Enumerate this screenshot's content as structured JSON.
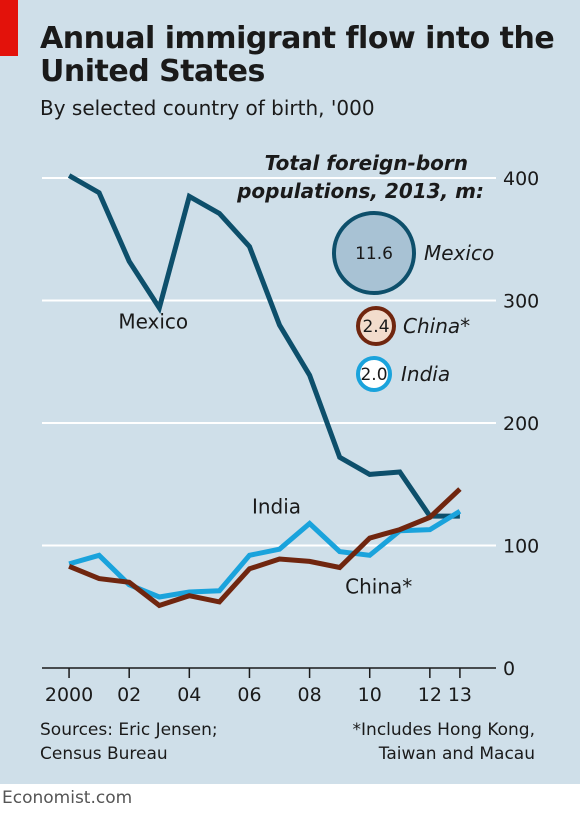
{
  "header": {
    "title": "Annual immigrant flow into the United States",
    "subtitle": "By selected country of birth, '000"
  },
  "footer": {
    "sources_line1": "Sources: Eric Jensen;",
    "sources_line2": "Census Bureau",
    "note_line1": "*Includes Hong Kong,",
    "note_line2": "Taiwan and Macau",
    "brand": "Economist.com"
  },
  "chart_data": {
    "type": "line",
    "x": [
      2000,
      2001,
      2002,
      2003,
      2004,
      2005,
      2006,
      2007,
      2008,
      2009,
      2010,
      2011,
      2012,
      2013
    ],
    "xlim": [
      1999.1,
      2014.2
    ],
    "ylim": [
      0,
      400
    ],
    "grid": true,
    "y_ticks": [
      {
        "value": 0,
        "label": "0"
      },
      {
        "value": 100,
        "label": "100"
      },
      {
        "value": 200,
        "label": "200"
      },
      {
        "value": 300,
        "label": "300"
      },
      {
        "value": 400,
        "label": "400"
      }
    ],
    "x_ticks": [
      {
        "value": 2000,
        "label": "2000"
      },
      {
        "value": 2002,
        "label": "02"
      },
      {
        "value": 2004,
        "label": "04"
      },
      {
        "value": 2006,
        "label": "06"
      },
      {
        "value": 2008,
        "label": "08"
      },
      {
        "value": 2010,
        "label": "10"
      },
      {
        "value": 2012,
        "label": "12"
      },
      {
        "value": 2013,
        "label": "13"
      }
    ],
    "series": [
      {
        "name": "Mexico",
        "color": "#0d4f6b",
        "values": [
          402,
          388,
          332,
          294,
          385,
          371,
          344,
          280,
          239,
          172,
          158,
          160,
          124,
          124
        ]
      },
      {
        "name": "India",
        "color": "#1aa3dc",
        "values": [
          85,
          92,
          68,
          58,
          62,
          63,
          92,
          97,
          118,
          95,
          92,
          112,
          113,
          128
        ]
      },
      {
        "name": "China*",
        "color": "#70260f",
        "values": [
          83,
          73,
          70,
          51,
          59,
          54,
          81,
          89,
          87,
          82,
          106,
          113,
          123,
          146
        ]
      }
    ],
    "series_labels": [
      {
        "text": "Mexico",
        "x": 2002.8,
        "y": 277
      },
      {
        "text": "India",
        "x": 2006.9,
        "y": 126
      },
      {
        "text": "China*",
        "x": 2010.3,
        "y": 61
      }
    ],
    "bubbles": {
      "heading_line1": "Total foreign-born",
      "heading_line2": "populations, 2013, m:",
      "items": [
        {
          "country": "Mexico",
          "value": "11.6",
          "fill": "#a8c2d4",
          "stroke": "#0d4f6b"
        },
        {
          "country": "China*",
          "value": "2.4",
          "fill": "#f2dccc",
          "stroke": "#70260f"
        },
        {
          "country": "India",
          "value": "2.0",
          "fill": "#ffffff",
          "stroke": "#1aa3dc"
        }
      ]
    }
  }
}
